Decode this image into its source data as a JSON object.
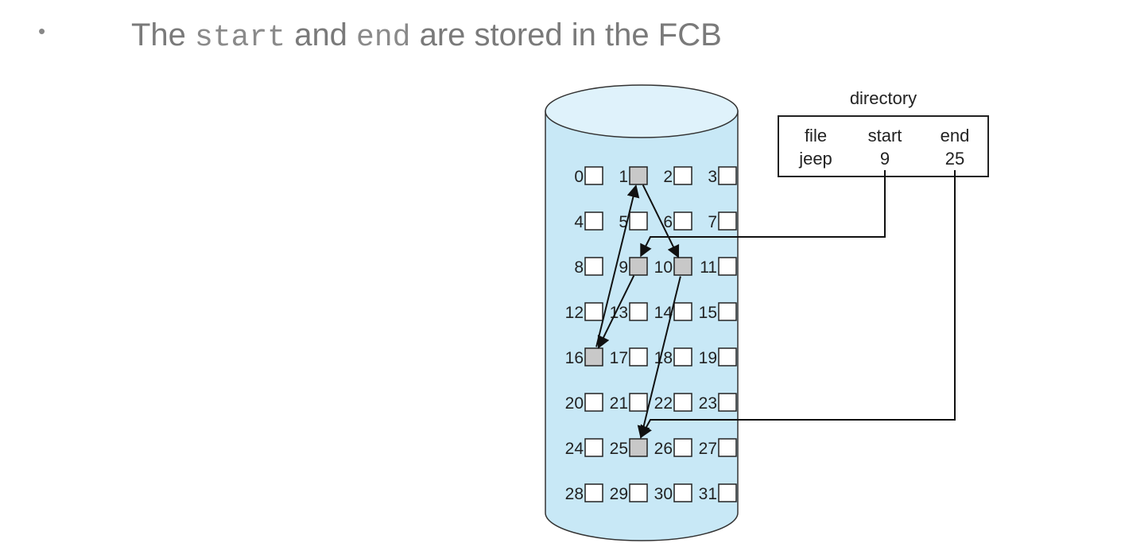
{
  "slide": {
    "bullet": "•",
    "heading_parts": [
      "The ",
      "start",
      " and ",
      "end",
      " are stored in the FCB"
    ]
  },
  "diagram": {
    "directory_title": "directory",
    "table_header": [
      "file",
      "start",
      "end"
    ],
    "table_row": [
      "jeep",
      "9",
      "25"
    ],
    "blocks": [
      "0",
      "1",
      "2",
      "3",
      "4",
      "5",
      "6",
      "7",
      "8",
      "9",
      "10",
      "11",
      "12",
      "13",
      "14",
      "15",
      "16",
      "17",
      "18",
      "19",
      "20",
      "21",
      "22",
      "23",
      "24",
      "25",
      "26",
      "27",
      "28",
      "29",
      "30",
      "31"
    ],
    "allocated_blocks": [
      9,
      16,
      1,
      10,
      25
    ],
    "chain": [
      9,
      16,
      1,
      10,
      25
    ],
    "colors": {
      "disk_fill": "#c8e8f6",
      "disk_top": "#dff2fb",
      "allocated_fill": "#c8c8c8",
      "free_fill": "#ffffff",
      "heading_text": "#7a7a7a"
    }
  }
}
